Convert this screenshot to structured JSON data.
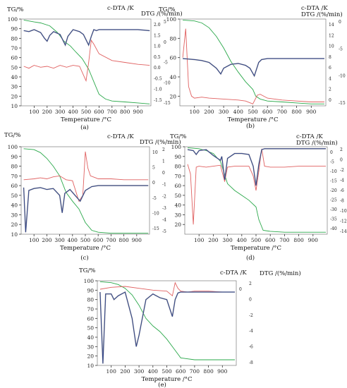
{
  "colors": {
    "tg": "#2aa84a",
    "dta": "#e06060",
    "dtg": "#2b3f8a",
    "dtg_shadow": "#9a9a9a"
  },
  "chart_data": [
    {
      "id": "a",
      "type": "line",
      "caption": "(a)",
      "xlabel": "Temperature /°C",
      "ylabel_left": "TG/%",
      "ylabel_right1": "c-DTA /K",
      "ylabel_right2": "DTG /(%/min)",
      "xlim": [
        0,
        1000
      ],
      "ylim_left": [
        10,
        100
      ],
      "xticks": [
        100,
        200,
        300,
        400,
        500,
        600,
        700,
        800,
        900
      ],
      "yticks_left": [
        10,
        20,
        30,
        40,
        50,
        60,
        70,
        80,
        90,
        100
      ],
      "yticks_r1": [
        "2.0",
        "1.5",
        "1.0",
        "0.5",
        "0.0",
        "-0.5",
        "-1.0",
        "-1.5"
      ],
      "yticks_r2": [
        "5",
        "0",
        "-5",
        "-10",
        "-15"
      ],
      "series": [
        {
          "kind": "tg",
          "x": [
            20,
            100,
            150,
            220,
            280,
            330,
            380,
            420,
            470,
            520,
            560,
            600,
            650,
            700,
            800,
            900,
            990
          ],
          "y": [
            99,
            97,
            96,
            93,
            86,
            77,
            72,
            66,
            59,
            48,
            35,
            22,
            17,
            15,
            14,
            13,
            12
          ]
        },
        {
          "kind": "dta",
          "x": [
            20,
            60,
            100,
            150,
            200,
            250,
            300,
            350,
            400,
            450,
            480,
            500,
            520,
            540,
            560,
            600,
            700,
            800,
            900,
            990
          ],
          "y": [
            51,
            49,
            52,
            50,
            51,
            49,
            52,
            50,
            52,
            51,
            42,
            36,
            55,
            78,
            74,
            64,
            57,
            55,
            53,
            52
          ]
        },
        {
          "kind": "dtg",
          "x": [
            20,
            60,
            100,
            150,
            180,
            200,
            220,
            250,
            300,
            340,
            360,
            400,
            450,
            480,
            520,
            540,
            560,
            580,
            600,
            700,
            800,
            900,
            990
          ],
          "y": [
            88,
            87,
            89,
            86,
            80,
            77,
            83,
            87,
            84,
            73,
            82,
            89,
            87,
            84,
            73,
            82,
            89,
            88,
            89,
            89,
            89,
            89,
            88
          ]
        }
      ]
    },
    {
      "id": "b",
      "type": "line",
      "caption": "(b)",
      "xlabel": "Temperature /°C",
      "ylabel_left": "TG/%",
      "ylabel_right1": "c-DTA /K",
      "ylabel_right2": "DTG /(%/min)",
      "xlim": [
        0,
        1000
      ],
      "ylim_left": [
        10,
        100
      ],
      "xticks": [
        100,
        200,
        300,
        400,
        500,
        600,
        700,
        800,
        900
      ],
      "yticks_left": [
        20,
        40,
        60,
        80,
        100
      ],
      "yticks_r1": [
        "14",
        "12",
        "10",
        "8",
        "6",
        "4",
        "2",
        "0"
      ],
      "yticks_r2": [
        "0",
        "-5",
        "-10",
        "-15"
      ],
      "series": [
        {
          "kind": "tg",
          "x": [
            20,
            100,
            150,
            200,
            250,
            300,
            350,
            400,
            450,
            500,
            520,
            550,
            600,
            700,
            800,
            900,
            990
          ],
          "y": [
            99,
            98,
            96,
            91,
            82,
            70,
            56,
            45,
            35,
            27,
            20,
            17,
            15,
            14,
            13,
            12,
            12
          ]
        },
        {
          "kind": "dta",
          "x": [
            20,
            40,
            60,
            80,
            100,
            150,
            200,
            300,
            400,
            450,
            500,
            530,
            550,
            600,
            700,
            800,
            900,
            990
          ],
          "y": [
            60,
            90,
            30,
            20,
            18,
            19,
            18,
            17,
            16,
            15,
            12,
            21,
            22,
            18,
            16,
            15,
            14,
            14
          ]
        },
        {
          "kind": "dtg",
          "x": [
            20,
            100,
            150,
            200,
            250,
            280,
            300,
            350,
            400,
            450,
            480,
            510,
            540,
            560,
            600,
            700,
            800,
            900,
            990
          ],
          "y": [
            59,
            58,
            57,
            55,
            49,
            43,
            49,
            53,
            54,
            52,
            49,
            41,
            55,
            58,
            59,
            59,
            59,
            59,
            59
          ]
        }
      ]
    },
    {
      "id": "c",
      "type": "line",
      "caption": "(c)",
      "xlabel": "Temperature /°C",
      "ylabel_left": "TG/%",
      "ylabel_right1": "c-DTA /K",
      "ylabel_right2": "DTG /(%/min)",
      "xlim": [
        0,
        1000
      ],
      "ylim_left": [
        10,
        100
      ],
      "xticks": [
        100,
        200,
        300,
        400,
        500,
        600,
        700,
        800,
        900
      ],
      "yticks_left": [
        10,
        20,
        30,
        40,
        50,
        60,
        70,
        80,
        90,
        100
      ],
      "yticks_r1": [
        "10",
        "5",
        "0",
        "-5",
        "-10",
        "-15"
      ],
      "yticks_r2": [
        "2",
        "1",
        "0",
        "-1",
        "-2",
        "-3",
        "-4",
        "-5"
      ],
      "series": [
        {
          "kind": "tg",
          "x": [
            20,
            100,
            150,
            200,
            250,
            300,
            350,
            400,
            450,
            500,
            550,
            600,
            700,
            800,
            900,
            990
          ],
          "y": [
            98,
            97,
            94,
            88,
            80,
            70,
            53,
            44,
            36,
            22,
            14,
            12,
            11,
            11,
            11,
            11
          ]
        },
        {
          "kind": "dta",
          "x": [
            20,
            100,
            150,
            200,
            250,
            300,
            350,
            400,
            450,
            480,
            500,
            520,
            540,
            580,
            600,
            700,
            800,
            900,
            990
          ],
          "y": [
            66,
            67,
            68,
            67,
            69,
            70,
            66,
            65,
            44,
            50,
            95,
            78,
            70,
            68,
            67,
            67,
            66,
            66,
            66
          ]
        },
        {
          "kind": "dtg",
          "x": [
            20,
            35,
            60,
            100,
            150,
            200,
            250,
            300,
            320,
            340,
            380,
            420,
            460,
            500,
            550,
            600,
            700,
            800,
            900,
            990
          ],
          "y": [
            58,
            12,
            55,
            57,
            58,
            56,
            57,
            50,
            32,
            52,
            56,
            50,
            44,
            55,
            59,
            60,
            60,
            60,
            60,
            60
          ]
        }
      ]
    },
    {
      "id": "d",
      "type": "line",
      "caption": "(d)",
      "xlabel": "Temperature /°C",
      "ylabel_left": "TG/%",
      "ylabel_right1": "c-DTA /K",
      "ylabel_right2": "DTG /(%/min)",
      "xlim": [
        0,
        1000
      ],
      "ylim_left": [
        10,
        100
      ],
      "xticks": [
        100,
        200,
        300,
        400,
        500,
        600,
        700,
        800,
        900
      ],
      "yticks_left": [
        20,
        30,
        40,
        50,
        60,
        70,
        80,
        90,
        100
      ],
      "yticks_r1": [
        "0",
        "-5",
        "-10",
        "-15",
        "-20",
        "-25",
        "-30",
        "-35",
        "-40"
      ],
      "yticks_r2": [
        "2",
        "0",
        "-2",
        "-4",
        "-6",
        "-8",
        "-10",
        "-12",
        "-14"
      ],
      "series": [
        {
          "kind": "tg",
          "x": [
            20,
            100,
            150,
            200,
            250,
            300,
            350,
            400,
            450,
            500,
            520,
            550,
            600,
            700,
            800,
            900,
            990
          ],
          "y": [
            99,
            98,
            96,
            93,
            85,
            62,
            55,
            50,
            45,
            38,
            25,
            14,
            13,
            12,
            12,
            12,
            12
          ]
        },
        {
          "kind": "dta",
          "x": [
            20,
            40,
            60,
            80,
            100,
            150,
            200,
            250,
            280,
            300,
            350,
            400,
            450,
            480,
            500,
            520,
            540,
            560,
            600,
            700,
            800,
            900,
            990
          ],
          "y": [
            82,
            72,
            20,
            79,
            80,
            79,
            80,
            81,
            64,
            79,
            80,
            80,
            80,
            70,
            55,
            75,
            98,
            80,
            79,
            79,
            80,
            80,
            80
          ]
        },
        {
          "kind": "dtg",
          "x": [
            20,
            60,
            80,
            100,
            150,
            200,
            250,
            260,
            280,
            300,
            350,
            400,
            450,
            480,
            500,
            520,
            540,
            560,
            600,
            700,
            800,
            900,
            990
          ],
          "y": [
            97,
            96,
            92,
            96,
            97,
            91,
            86,
            90,
            66,
            88,
            93,
            93,
            92,
            80,
            60,
            82,
            97,
            98,
            98,
            98,
            98,
            98,
            98
          ]
        }
      ]
    },
    {
      "id": "e",
      "type": "line",
      "caption": "(e)",
      "xlabel": "Temperature /°C",
      "ylabel_left": "TG/%",
      "ylabel_right1": "c-DTA /K",
      "ylabel_right2": "DTG /(%/min)",
      "xlim": [
        0,
        1000
      ],
      "ylim_left": [
        10,
        100
      ],
      "xticks": [
        100,
        200,
        300,
        400,
        500,
        600,
        700,
        800,
        900
      ],
      "yticks_left": [
        10,
        20,
        30,
        40,
        50,
        60,
        70,
        80,
        90,
        100
      ],
      "yticks_r1": [
        "0"
      ],
      "yticks_r2": [
        "2",
        "0",
        "-2",
        "-4",
        "-6",
        "-8"
      ],
      "series": [
        {
          "kind": "tg",
          "x": [
            20,
            100,
            150,
            200,
            250,
            300,
            350,
            400,
            450,
            500,
            550,
            600,
            700,
            800,
            900,
            990
          ],
          "y": [
            99,
            98,
            96,
            92,
            85,
            74,
            60,
            52,
            46,
            38,
            28,
            18,
            16,
            16,
            16,
            16
          ]
        },
        {
          "kind": "dta",
          "x": [
            20,
            100,
            200,
            300,
            400,
            500,
            540,
            560,
            580,
            600,
            650,
            700,
            800,
            900,
            990
          ],
          "y": [
            91,
            93,
            94,
            92,
            90,
            89,
            84,
            98,
            92,
            89,
            88,
            89,
            89,
            88,
            88
          ]
        },
        {
          "kind": "dtg",
          "x": [
            20,
            40,
            60,
            100,
            120,
            150,
            200,
            250,
            280,
            300,
            350,
            400,
            450,
            500,
            540,
            560,
            580,
            600,
            700,
            800,
            900,
            990
          ],
          "y": [
            88,
            12,
            86,
            86,
            80,
            84,
            88,
            60,
            30,
            42,
            80,
            86,
            82,
            80,
            62,
            80,
            87,
            88,
            88,
            88,
            88,
            88
          ]
        }
      ]
    }
  ]
}
